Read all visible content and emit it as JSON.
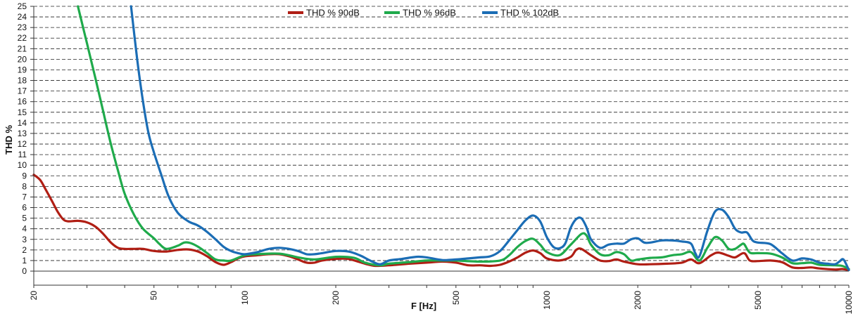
{
  "chart_data": {
    "type": "line",
    "xlabel": "F [Hz]",
    "ylabel": "THD %",
    "x_scale": "log",
    "xlim": [
      20,
      10000
    ],
    "ylim": [
      0,
      25
    ],
    "grid": "horizontal dashed",
    "legend_position": "top-center",
    "x_ticks": [
      20,
      50,
      100,
      200,
      500,
      1000,
      2000,
      5000,
      10000
    ],
    "y_ticks": [
      0,
      1,
      2,
      3,
      4,
      5,
      6,
      7,
      8,
      9,
      10,
      11,
      12,
      13,
      14,
      15,
      16,
      17,
      18,
      19,
      20,
      21,
      22,
      23,
      24,
      25
    ],
    "series": [
      {
        "name": "THD % 90dB",
        "color": "#B01E14",
        "points": [
          [
            20,
            9.1
          ],
          [
            21,
            8.6
          ],
          [
            22,
            7.6
          ],
          [
            23,
            6.6
          ],
          [
            24,
            5.6
          ],
          [
            25,
            4.9
          ],
          [
            26,
            4.7
          ],
          [
            28,
            4.75
          ],
          [
            30,
            4.6
          ],
          [
            32,
            4.2
          ],
          [
            34,
            3.5
          ],
          [
            36,
            2.7
          ],
          [
            38,
            2.2
          ],
          [
            40,
            2.1
          ],
          [
            43,
            2.1
          ],
          [
            46,
            2.1
          ],
          [
            50,
            1.9
          ],
          [
            55,
            1.85
          ],
          [
            60,
            2.0
          ],
          [
            65,
            2.05
          ],
          [
            70,
            1.85
          ],
          [
            75,
            1.4
          ],
          [
            80,
            0.85
          ],
          [
            85,
            0.6
          ],
          [
            90,
            0.85
          ],
          [
            95,
            1.2
          ],
          [
            100,
            1.4
          ],
          [
            110,
            1.5
          ],
          [
            120,
            1.6
          ],
          [
            130,
            1.6
          ],
          [
            140,
            1.4
          ],
          [
            150,
            1.1
          ],
          [
            160,
            0.8
          ],
          [
            170,
            0.8
          ],
          [
            180,
            1.0
          ],
          [
            200,
            1.15
          ],
          [
            220,
            1.15
          ],
          [
            250,
            0.7
          ],
          [
            270,
            0.5
          ],
          [
            300,
            0.55
          ],
          [
            350,
            0.7
          ],
          [
            400,
            0.8
          ],
          [
            450,
            0.9
          ],
          [
            500,
            0.8
          ],
          [
            550,
            0.55
          ],
          [
            600,
            0.55
          ],
          [
            650,
            0.5
          ],
          [
            700,
            0.6
          ],
          [
            750,
            0.9
          ],
          [
            800,
            1.3
          ],
          [
            850,
            1.75
          ],
          [
            900,
            1.95
          ],
          [
            950,
            1.7
          ],
          [
            1000,
            1.2
          ],
          [
            1100,
            1.0
          ],
          [
            1200,
            1.35
          ],
          [
            1250,
            2.0
          ],
          [
            1300,
            2.1
          ],
          [
            1400,
            1.5
          ],
          [
            1500,
            1.0
          ],
          [
            1600,
            0.95
          ],
          [
            1700,
            1.1
          ],
          [
            1800,
            0.9
          ],
          [
            2000,
            0.65
          ],
          [
            2200,
            0.65
          ],
          [
            2500,
            0.7
          ],
          [
            2800,
            0.8
          ],
          [
            3000,
            1.1
          ],
          [
            3200,
            0.75
          ],
          [
            3500,
            1.5
          ],
          [
            3700,
            1.75
          ],
          [
            4000,
            1.45
          ],
          [
            4200,
            1.3
          ],
          [
            4500,
            1.7
          ],
          [
            4700,
            1.0
          ],
          [
            5000,
            0.95
          ],
          [
            5500,
            1.0
          ],
          [
            6000,
            0.85
          ],
          [
            6500,
            0.35
          ],
          [
            7000,
            0.3
          ],
          [
            7500,
            0.35
          ],
          [
            8000,
            0.25
          ],
          [
            9000,
            0.15
          ],
          [
            9500,
            0.2
          ],
          [
            10000,
            0.1
          ]
        ]
      },
      {
        "name": "THD % 96dB",
        "color": "#1FAA4B",
        "points": [
          [
            28,
            25
          ],
          [
            30,
            21.5
          ],
          [
            32,
            18.2
          ],
          [
            34,
            15.0
          ],
          [
            36,
            12.0
          ],
          [
            38,
            9.5
          ],
          [
            40,
            7.3
          ],
          [
            43,
            5.3
          ],
          [
            46,
            4.0
          ],
          [
            50,
            3.1
          ],
          [
            52,
            2.6
          ],
          [
            55,
            2.1
          ],
          [
            60,
            2.4
          ],
          [
            63,
            2.7
          ],
          [
            66,
            2.65
          ],
          [
            70,
            2.3
          ],
          [
            75,
            1.7
          ],
          [
            80,
            1.1
          ],
          [
            85,
            1.0
          ],
          [
            90,
            1.0
          ],
          [
            100,
            1.5
          ],
          [
            110,
            1.6
          ],
          [
            120,
            1.65
          ],
          [
            130,
            1.65
          ],
          [
            140,
            1.5
          ],
          [
            150,
            1.3
          ],
          [
            170,
            1.1
          ],
          [
            200,
            1.35
          ],
          [
            230,
            1.25
          ],
          [
            250,
            0.8
          ],
          [
            280,
            0.55
          ],
          [
            300,
            0.7
          ],
          [
            350,
            0.85
          ],
          [
            400,
            1.0
          ],
          [
            450,
            1.0
          ],
          [
            500,
            1.0
          ],
          [
            600,
            0.9
          ],
          [
            700,
            1.0
          ],
          [
            750,
            1.5
          ],
          [
            800,
            2.3
          ],
          [
            850,
            2.85
          ],
          [
            900,
            3.05
          ],
          [
            950,
            2.5
          ],
          [
            1000,
            1.8
          ],
          [
            1100,
            1.5
          ],
          [
            1200,
            2.5
          ],
          [
            1300,
            3.5
          ],
          [
            1350,
            3.4
          ],
          [
            1400,
            2.5
          ],
          [
            1500,
            1.6
          ],
          [
            1600,
            1.5
          ],
          [
            1700,
            1.8
          ],
          [
            1800,
            1.6
          ],
          [
            1900,
            1.0
          ],
          [
            2000,
            1.1
          ],
          [
            2200,
            1.25
          ],
          [
            2400,
            1.3
          ],
          [
            2600,
            1.5
          ],
          [
            2800,
            1.6
          ],
          [
            3000,
            1.8
          ],
          [
            3200,
            1.0
          ],
          [
            3400,
            2.2
          ],
          [
            3600,
            3.2
          ],
          [
            3800,
            2.9
          ],
          [
            4000,
            2.1
          ],
          [
            4200,
            2.1
          ],
          [
            4400,
            2.5
          ],
          [
            4500,
            2.55
          ],
          [
            4700,
            1.75
          ],
          [
            5000,
            1.7
          ],
          [
            5500,
            1.65
          ],
          [
            6000,
            1.3
          ],
          [
            6500,
            0.75
          ],
          [
            7000,
            0.75
          ],
          [
            7500,
            0.8
          ],
          [
            8000,
            0.6
          ],
          [
            9000,
            0.55
          ],
          [
            9500,
            0.5
          ],
          [
            10000,
            0.2
          ]
        ]
      },
      {
        "name": "THD % 102dB",
        "color": "#1B6DB5",
        "points": [
          [
            42,
            25
          ],
          [
            44,
            20
          ],
          [
            46,
            16
          ],
          [
            48,
            13
          ],
          [
            50,
            11.2
          ],
          [
            53,
            9.0
          ],
          [
            56,
            7.0
          ],
          [
            60,
            5.5
          ],
          [
            65,
            4.7
          ],
          [
            70,
            4.3
          ],
          [
            75,
            3.7
          ],
          [
            80,
            3.0
          ],
          [
            85,
            2.3
          ],
          [
            90,
            1.9
          ],
          [
            95,
            1.7
          ],
          [
            100,
            1.6
          ],
          [
            110,
            1.8
          ],
          [
            120,
            2.1
          ],
          [
            130,
            2.2
          ],
          [
            140,
            2.1
          ],
          [
            150,
            1.9
          ],
          [
            160,
            1.6
          ],
          [
            170,
            1.6
          ],
          [
            180,
            1.7
          ],
          [
            200,
            1.9
          ],
          [
            220,
            1.85
          ],
          [
            240,
            1.5
          ],
          [
            260,
            1.0
          ],
          [
            280,
            0.65
          ],
          [
            300,
            1.0
          ],
          [
            330,
            1.15
          ],
          [
            370,
            1.35
          ],
          [
            400,
            1.3
          ],
          [
            450,
            1.05
          ],
          [
            500,
            1.1
          ],
          [
            550,
            1.2
          ],
          [
            600,
            1.3
          ],
          [
            650,
            1.4
          ],
          [
            700,
            1.9
          ],
          [
            750,
            2.9
          ],
          [
            800,
            3.9
          ],
          [
            850,
            4.8
          ],
          [
            900,
            5.25
          ],
          [
            950,
            4.7
          ],
          [
            1000,
            3.2
          ],
          [
            1050,
            2.3
          ],
          [
            1100,
            2.15
          ],
          [
            1150,
            2.6
          ],
          [
            1200,
            4.1
          ],
          [
            1250,
            4.9
          ],
          [
            1300,
            5.0
          ],
          [
            1350,
            4.2
          ],
          [
            1400,
            3.0
          ],
          [
            1500,
            2.2
          ],
          [
            1600,
            2.5
          ],
          [
            1700,
            2.6
          ],
          [
            1800,
            2.6
          ],
          [
            1900,
            3.0
          ],
          [
            2000,
            3.1
          ],
          [
            2100,
            2.7
          ],
          [
            2200,
            2.7
          ],
          [
            2400,
            2.9
          ],
          [
            2600,
            2.9
          ],
          [
            2800,
            2.8
          ],
          [
            3000,
            2.6
          ],
          [
            3100,
            1.7
          ],
          [
            3200,
            1.4
          ],
          [
            3400,
            3.8
          ],
          [
            3600,
            5.6
          ],
          [
            3800,
            5.8
          ],
          [
            4000,
            5.1
          ],
          [
            4200,
            4.0
          ],
          [
            4400,
            3.65
          ],
          [
            4600,
            3.65
          ],
          [
            4800,
            2.9
          ],
          [
            5000,
            2.7
          ],
          [
            5500,
            2.55
          ],
          [
            6000,
            1.7
          ],
          [
            6500,
            1.0
          ],
          [
            7000,
            1.2
          ],
          [
            7500,
            1.1
          ],
          [
            8000,
            0.8
          ],
          [
            8500,
            0.7
          ],
          [
            9000,
            0.65
          ],
          [
            9300,
            0.9
          ],
          [
            9600,
            1.1
          ],
          [
            10000,
            0.1
          ]
        ]
      }
    ]
  }
}
